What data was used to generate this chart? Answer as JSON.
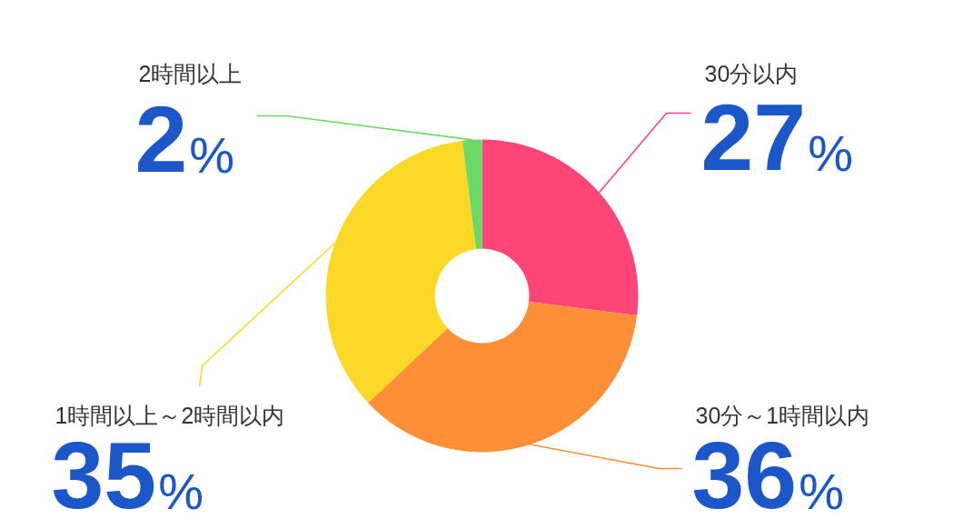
{
  "chart_data": {
    "type": "donut",
    "categories": [
      "30分以内",
      "30分～1時間以内",
      "1時間以上～2時間以内",
      "2時間以上"
    ],
    "values": [
      27,
      36,
      35,
      2
    ],
    "colors": [
      "#ff4577",
      "#ff8f37",
      "#fbd826",
      "#6cd865"
    ],
    "value_labels": [
      "27%",
      "36%",
      "35%",
      "2%"
    ]
  }
}
